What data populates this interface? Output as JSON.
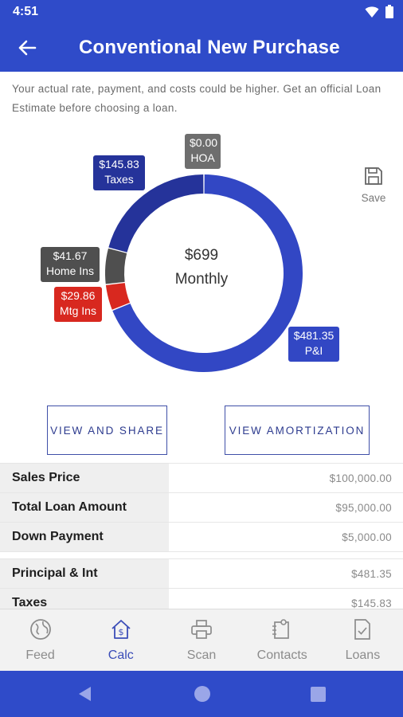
{
  "status_bar": {
    "time": "4:51",
    "icons": [
      "wifi-icon",
      "battery-icon"
    ]
  },
  "app_bar": {
    "title": "Conventional New Purchase",
    "back_icon": "back-arrow-icon"
  },
  "disclaimer": "Your actual rate, payment, and costs could be higher. Get an official Loan Estimate before choosing a loan.",
  "chart_data": {
    "type": "pie",
    "donut": true,
    "center_amount": "$699",
    "center_label": "Monthly",
    "slices": [
      {
        "name": "P&I",
        "value": 481.35,
        "label": "$481.35",
        "color": "#3247c4"
      },
      {
        "name": "Mtg Ins",
        "value": 29.86,
        "label": "$29.86",
        "color": "#d8281f"
      },
      {
        "name": "Home Ins",
        "value": 41.67,
        "label": "$41.67",
        "color": "#4f4f4f"
      },
      {
        "name": "Taxes",
        "value": 145.83,
        "label": "$145.83",
        "color": "#25339a"
      },
      {
        "name": "HOA",
        "value": 0.0,
        "label": "$0.00",
        "color": "#6e6e6e"
      }
    ]
  },
  "save": {
    "label": "Save",
    "icon": "save-icon"
  },
  "buttons": {
    "share": "VIEW AND SHARE",
    "amortization": "VIEW AMORTIZATION"
  },
  "table": {
    "rows": [
      {
        "label": "Sales Price",
        "value": "$100,000.00"
      },
      {
        "label": "Total Loan Amount",
        "value": "$95,000.00"
      },
      {
        "label": "Down Payment",
        "value": "$5,000.00"
      }
    ],
    "rows2": [
      {
        "label": "Principal & Int",
        "value": "$481.35"
      },
      {
        "label": "Taxes",
        "value": "$145.83"
      }
    ]
  },
  "bottom_nav": {
    "items": [
      {
        "label": "Feed",
        "icon": "globe-icon",
        "active": false
      },
      {
        "label": "Calc",
        "icon": "home-dollar-icon",
        "active": true
      },
      {
        "label": "Scan",
        "icon": "printer-icon",
        "active": false
      },
      {
        "label": "Contacts",
        "icon": "contacts-icon",
        "active": false
      },
      {
        "label": "Loans",
        "icon": "document-check-icon",
        "active": false
      }
    ]
  },
  "colors": {
    "primary": "#2f4bc9",
    "accent_text": "#2e3c8f"
  }
}
